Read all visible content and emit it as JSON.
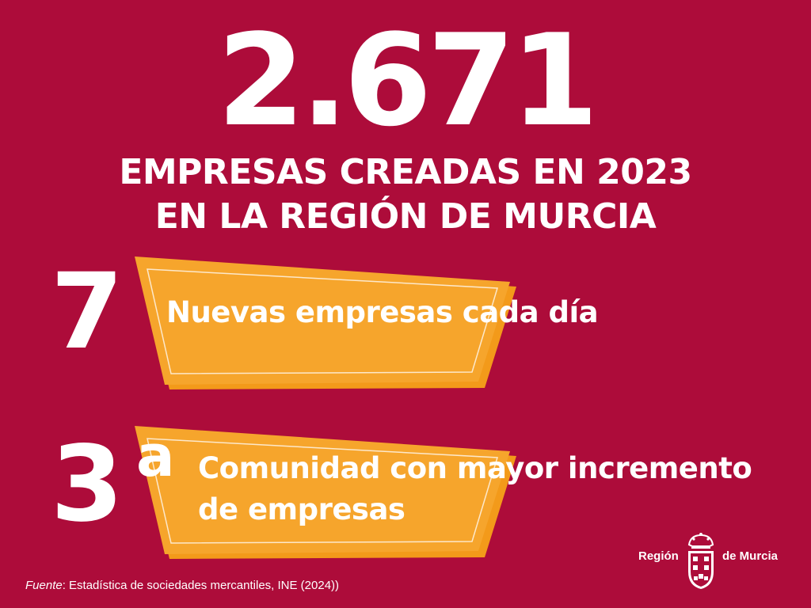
{
  "headline": {
    "number": "2.671",
    "line1": "EMPRESAS CREADAS EN 2023",
    "line2": "EN LA REGIÓN DE MURCIA"
  },
  "stats": [
    {
      "value": "7",
      "text": "Nuevas empresas cada día"
    },
    {
      "value": "3",
      "superscript": "a",
      "text_line1": "Comunidad con mayor incremento",
      "text_line2": "de empresas"
    }
  ],
  "source": {
    "label": "Fuente",
    "text": ": Estadística de sociedades mercantiles, INE (2024))"
  },
  "logo": {
    "left_text": "Región",
    "right_text": "de Murcia"
  },
  "colors": {
    "background": "#ad0c3a",
    "ribbon": "#f6a52c",
    "ribbon_shadow": "#f39a1a",
    "text": "#ffffff"
  }
}
